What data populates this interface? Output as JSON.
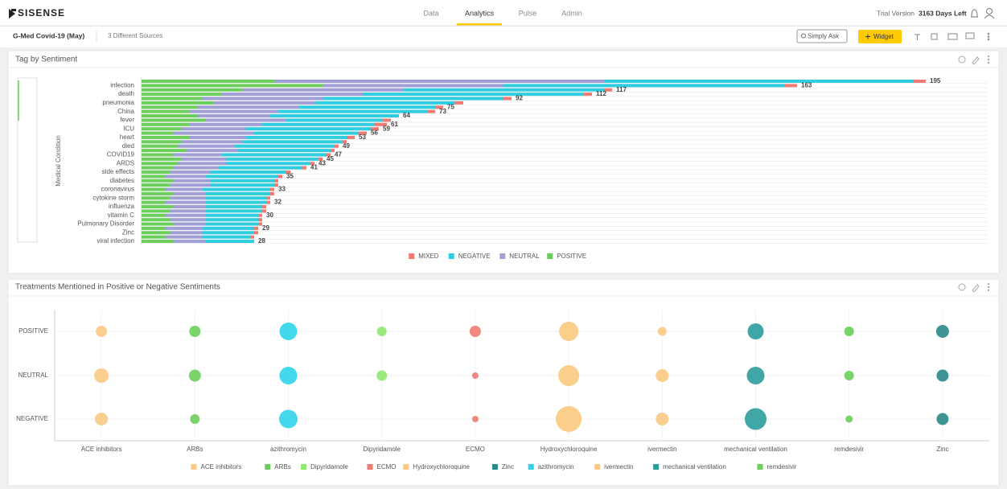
{
  "header": {
    "logo": "SISENSE",
    "tabs": [
      "Data",
      "Analytics",
      "Pulse",
      "Admin"
    ],
    "active_tab": 1,
    "trial": "Trial Version",
    "days_left": "3163 Days Left"
  },
  "toolbar": {
    "dashboard": "G-Med Covid-19 (May)",
    "sources": "3 Different Sources",
    "ask": "Simply Ask",
    "widget": "Widget"
  },
  "chart_data": [
    {
      "type": "stacked-bar-horizontal",
      "title": "Tag by Sentiment",
      "y_label": "Medical Condition",
      "categories": [
        null,
        "infection",
        null,
        "death",
        null,
        "pneumonia",
        null,
        "China",
        null,
        "fever",
        null,
        "ICU",
        null,
        "heart",
        null,
        "died",
        null,
        "COVID19",
        null,
        "ARDS",
        null,
        "side effects",
        null,
        "diabetes",
        null,
        "coronavirus",
        null,
        "cytokine storm",
        null,
        "influenza",
        null,
        "vitamin C",
        null,
        "Pulmonary Disorder",
        null,
        "Zinc",
        null,
        "viral infection"
      ],
      "series": [
        {
          "name": "MIXED",
          "color": "#f07b72",
          "values": [
            3,
            3,
            2,
            2,
            2,
            2,
            2,
            2,
            0,
            2,
            3,
            2,
            2,
            2,
            1,
            1,
            1,
            1,
            1,
            1,
            1,
            1,
            1,
            1,
            1,
            1,
            1,
            1,
            1,
            1,
            1,
            1,
            1,
            1,
            1,
            1,
            1,
            0
          ]
        },
        {
          "name": "NEGATIVE",
          "color": "#2fcde0",
          "values": [
            77,
            70,
            50,
            55,
            45,
            35,
            34,
            37,
            32,
            24,
            28,
            31,
            26,
            25,
            25,
            25,
            23,
            26,
            23,
            21,
            21,
            19,
            18,
            16,
            16,
            17,
            16,
            15,
            15,
            14,
            14,
            13,
            13,
            13,
            13,
            13,
            12,
            12
          ]
        },
        {
          "name": "NEUTRAL",
          "color": "#a09fd6",
          "values": [
            82,
            45,
            40,
            35,
            30,
            25,
            25,
            22,
            18,
            20,
            18,
            16,
            20,
            14,
            15,
            14,
            13,
            12,
            11,
            12,
            11,
            10,
            10,
            9,
            10,
            9,
            8,
            9,
            10,
            8,
            9,
            10,
            9,
            8,
            9,
            8,
            9,
            8
          ]
        },
        {
          "name": "POSITIVE",
          "color": "#6ccf5b",
          "values": [
            33,
            45,
            25,
            20,
            15,
            18,
            14,
            12,
            14,
            16,
            12,
            10,
            8,
            12,
            10,
            9,
            11,
            8,
            10,
            9,
            8,
            7,
            6,
            8,
            7,
            6,
            8,
            7,
            6,
            8,
            7,
            6,
            7,
            8,
            6,
            7,
            6,
            8
          ]
        }
      ],
      "totals": [
        195,
        163,
        117,
        112,
        92,
        null,
        75,
        73,
        64,
        null,
        61,
        59,
        56,
        53,
        null,
        49,
        null,
        47,
        45,
        43,
        41,
        null,
        35,
        null,
        null,
        33,
        null,
        null,
        32,
        null,
        null,
        30,
        null,
        null,
        29,
        null,
        null,
        28
      ],
      "xlim": [
        0,
        210
      ],
      "legend": "bottom"
    },
    {
      "type": "bubble",
      "title": "Treatments Mentioned in Positive or Negative Sentiments",
      "categories": [
        "ACE inhibitors",
        "ARBs",
        "azithromycin",
        "Dipyridamole",
        "ECMO",
        "Hydroxychloroquine",
        "ivermectin",
        "mechanical ventilation",
        "remdesivir",
        "Zinc"
      ],
      "y_categories": [
        "POSITIVE",
        "NEUTRAL",
        "NEGATIVE"
      ],
      "series": [
        {
          "name": "ACE inhibitors",
          "color": "#fac983",
          "values": [
            49,
            81,
            64
          ]
        },
        {
          "name": "ARBs",
          "color": "#6ccf5b",
          "values": [
            49,
            56,
            36
          ]
        },
        {
          "name": "Dipyridamole",
          "color": "#8fe870",
          "values": [
            36,
            42,
            null
          ]
        },
        {
          "name": "ECMO",
          "color": "#f07b72",
          "values": [
            49,
            16,
            16
          ]
        },
        {
          "name": "Hydroxychloroquine",
          "color": "#fcc97f",
          "values": [
            144,
            169,
            256
          ]
        },
        {
          "name": "Zinc",
          "color": "#2a8a87",
          "values": [
            64,
            56,
            56
          ]
        },
        {
          "name": "azithromycin",
          "color": "#2fd4ea",
          "values": [
            121,
            121,
            132
          ]
        },
        {
          "name": "ivermectin",
          "color": "#fac983",
          "values": [
            30,
            64,
            64
          ]
        },
        {
          "name": "mechanical ventilation",
          "color": "#2b9c9c",
          "values": [
            100,
            121,
            182
          ]
        },
        {
          "name": "remdesivir",
          "color": "#6ccf5b",
          "values": [
            36,
            36,
            20
          ]
        }
      ],
      "legend": "bottom",
      "grid": true
    }
  ]
}
